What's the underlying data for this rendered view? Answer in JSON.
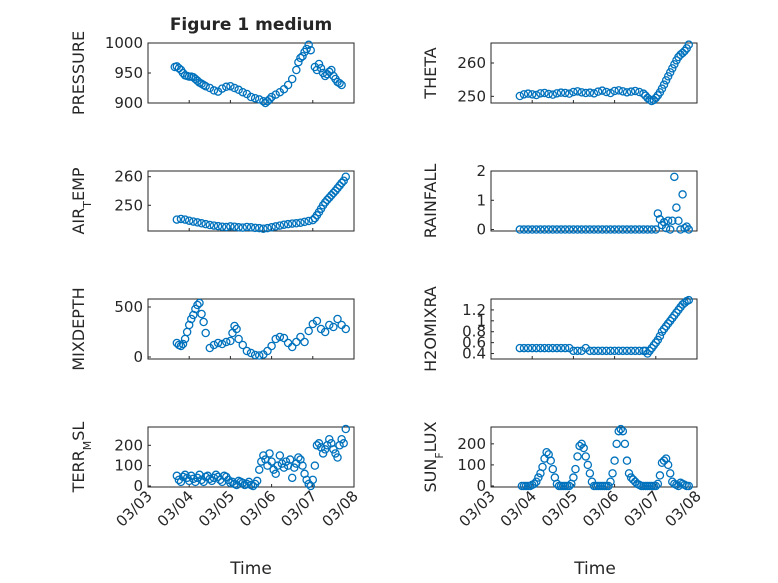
{
  "figure": {
    "title": "Figure 1 medium",
    "xlabel": "Time"
  },
  "chart_data": [
    {
      "name": "pressure",
      "type": "scatter",
      "ylabel": "PRESSURE",
      "ylim": [
        900,
        1000
      ],
      "yticks": [
        "900",
        "950",
        "1000"
      ],
      "xlim": [
        0,
        5
      ],
      "xticks": [
        "03/03",
        "03/04",
        "03/05",
        "03/06",
        "03/07",
        "03/08"
      ],
      "color": "#0072bd",
      "x": [
        0.65,
        0.7,
        0.75,
        0.8,
        0.85,
        0.9,
        0.95,
        1.0,
        1.05,
        1.1,
        1.15,
        1.2,
        1.25,
        1.3,
        1.35,
        1.4,
        1.5,
        1.6,
        1.7,
        1.8,
        1.9,
        2.0,
        2.1,
        2.2,
        2.3,
        2.4,
        2.5,
        2.6,
        2.7,
        2.8,
        2.85,
        2.9,
        2.95,
        3.0,
        3.1,
        3.2,
        3.3,
        3.4,
        3.5,
        3.6,
        3.65,
        3.7,
        3.75,
        3.8,
        3.85,
        3.9,
        3.95,
        4.05,
        4.1,
        4.15,
        4.2,
        4.25,
        4.3,
        4.35,
        4.4,
        4.45,
        4.5,
        4.55,
        4.6,
        4.65,
        4.7
      ],
      "y": [
        960,
        961,
        958,
        955,
        950,
        946,
        945,
        944,
        944,
        943,
        940,
        937,
        934,
        932,
        930,
        928,
        925,
        921,
        919,
        924,
        927,
        928,
        925,
        922,
        918,
        915,
        910,
        908,
        906,
        903,
        900,
        903,
        906,
        910,
        914,
        918,
        923,
        930,
        940,
        955,
        968,
        975,
        978,
        985,
        990,
        997,
        988,
        960,
        955,
        965,
        958,
        950,
        945,
        948,
        952,
        955,
        945,
        940,
        935,
        933,
        930
      ]
    },
    {
      "name": "theta",
      "type": "scatter",
      "ylabel": "THETA",
      "ylim": [
        248,
        266
      ],
      "yticks": [
        "250",
        "260"
      ],
      "xlim": [
        0,
        5
      ],
      "xticks": [
        "03/03",
        "03/04",
        "03/05",
        "03/06",
        "03/07",
        "03/08"
      ],
      "color": "#0072bd",
      "x": [
        0.7,
        0.8,
        0.9,
        1.0,
        1.1,
        1.2,
        1.3,
        1.4,
        1.5,
        1.6,
        1.7,
        1.8,
        1.9,
        2.0,
        2.1,
        2.2,
        2.3,
        2.4,
        2.5,
        2.6,
        2.7,
        2.8,
        2.9,
        3.0,
        3.1,
        3.2,
        3.3,
        3.4,
        3.5,
        3.6,
        3.7,
        3.75,
        3.8,
        3.85,
        3.9,
        3.95,
        4.0,
        4.05,
        4.1,
        4.15,
        4.2,
        4.25,
        4.3,
        4.35,
        4.4,
        4.45,
        4.5,
        4.55,
        4.6,
        4.65,
        4.7,
        4.75,
        4.8
      ],
      "y": [
        250.1,
        250.6,
        250.8,
        250.6,
        250.4,
        250.9,
        251.0,
        250.7,
        250.5,
        250.9,
        251.1,
        251.0,
        250.8,
        251.3,
        251.5,
        251.2,
        251.0,
        251.1,
        250.9,
        251.4,
        251.7,
        251.3,
        251.0,
        251.6,
        251.8,
        251.5,
        251.2,
        251.4,
        251.6,
        251.3,
        250.8,
        250.2,
        249.5,
        249.0,
        248.6,
        248.9,
        249.5,
        250.3,
        251.2,
        252.3,
        253.5,
        254.8,
        256.0,
        257.2,
        258.4,
        259.6,
        260.8,
        261.8,
        262.5,
        263.0,
        263.6,
        264.4,
        265.5
      ]
    },
    {
      "name": "air_temp",
      "type": "scatter",
      "ylabel": "AIR_TEMP",
      "ylim": [
        241,
        262
      ],
      "yticks": [
        "250",
        "260"
      ],
      "xlim": [
        0,
        5
      ],
      "xticks": [
        "03/03",
        "03/04",
        "03/05",
        "03/06",
        "03/07",
        "03/08"
      ],
      "color": "#0072bd",
      "x": [
        0.7,
        0.8,
        0.9,
        1.0,
        1.1,
        1.2,
        1.3,
        1.4,
        1.5,
        1.6,
        1.7,
        1.8,
        1.9,
        2.0,
        2.1,
        2.2,
        2.3,
        2.4,
        2.5,
        2.6,
        2.7,
        2.8,
        2.9,
        3.0,
        3.1,
        3.2,
        3.3,
        3.4,
        3.5,
        3.6,
        3.7,
        3.8,
        3.9,
        4.0,
        4.05,
        4.1,
        4.15,
        4.2,
        4.25,
        4.3,
        4.35,
        4.4,
        4.45,
        4.5,
        4.55,
        4.6,
        4.65,
        4.7,
        4.75,
        4.8
      ],
      "y": [
        245.0,
        245.2,
        245.0,
        244.6,
        244.3,
        244.0,
        243.7,
        243.4,
        243.1,
        242.9,
        242.7,
        242.5,
        242.4,
        242.6,
        242.5,
        242.3,
        242.2,
        242.4,
        242.3,
        242.1,
        242.0,
        241.8,
        242.0,
        242.3,
        242.6,
        242.9,
        243.2,
        243.4,
        243.6,
        243.7,
        243.9,
        244.2,
        244.5,
        244.8,
        245.5,
        246.5,
        247.6,
        248.8,
        250.0,
        251.0,
        251.9,
        252.7,
        253.5,
        254.3,
        255.1,
        256.0,
        256.9,
        257.8,
        258.6,
        260.0
      ]
    },
    {
      "name": "rainfall",
      "type": "scatter",
      "ylabel": "RAINFALL",
      "ylim": [
        -0.05,
        2
      ],
      "yticks": [
        "0",
        "1",
        "2"
      ],
      "xlim": [
        0,
        5
      ],
      "xticks": [
        "03/03",
        "03/04",
        "03/05",
        "03/06",
        "03/07",
        "03/08"
      ],
      "color": "#0072bd",
      "x": [
        0.7,
        0.8,
        0.9,
        1.0,
        1.1,
        1.2,
        1.3,
        1.4,
        1.5,
        1.6,
        1.7,
        1.8,
        1.9,
        2.0,
        2.1,
        2.2,
        2.3,
        2.4,
        2.5,
        2.6,
        2.7,
        2.8,
        2.9,
        3.0,
        3.1,
        3.2,
        3.3,
        3.4,
        3.5,
        3.6,
        3.7,
        3.8,
        3.9,
        4.0,
        4.05,
        4.1,
        4.15,
        4.2,
        4.25,
        4.3,
        4.35,
        4.4,
        4.45,
        4.5,
        4.55,
        4.6,
        4.65,
        4.7,
        4.75,
        4.8
      ],
      "y": [
        0,
        0,
        0,
        0,
        0,
        0,
        0,
        0,
        0,
        0,
        0,
        0,
        0,
        0,
        0,
        0,
        0,
        0,
        0,
        0,
        0,
        0,
        0,
        0,
        0,
        0,
        0,
        0,
        0,
        0,
        0,
        0,
        0,
        0,
        0.55,
        0.35,
        0.15,
        0.25,
        0.05,
        0.3,
        0.0,
        0.3,
        1.8,
        0.75,
        0.3,
        0.0,
        1.2,
        0.05,
        0.1,
        0.0
      ]
    },
    {
      "name": "mixdepth",
      "type": "scatter",
      "ylabel": "MIXDEPTH",
      "ylim": [
        -20,
        580
      ],
      "yticks": [
        "0",
        "500"
      ],
      "xlim": [
        0,
        5
      ],
      "xticks": [
        "03/03",
        "03/04",
        "03/05",
        "03/06",
        "03/07",
        "03/08"
      ],
      "color": "#0072bd",
      "x": [
        0.7,
        0.75,
        0.8,
        0.85,
        0.9,
        0.95,
        1.0,
        1.05,
        1.1,
        1.15,
        1.2,
        1.25,
        1.3,
        1.35,
        1.4,
        1.5,
        1.6,
        1.7,
        1.8,
        1.9,
        2.0,
        2.05,
        2.1,
        2.15,
        2.2,
        2.3,
        2.4,
        2.5,
        2.6,
        2.7,
        2.8,
        2.9,
        3.0,
        3.1,
        3.2,
        3.3,
        3.4,
        3.5,
        3.6,
        3.7,
        3.8,
        3.9,
        4.0,
        4.1,
        4.2,
        4.3,
        4.4,
        4.5,
        4.6,
        4.7,
        4.8
      ],
      "y": [
        140,
        120,
        110,
        130,
        180,
        250,
        320,
        380,
        420,
        480,
        520,
        540,
        430,
        350,
        240,
        90,
        120,
        140,
        130,
        150,
        160,
        240,
        310,
        280,
        180,
        120,
        60,
        40,
        20,
        15,
        25,
        60,
        110,
        180,
        200,
        190,
        140,
        100,
        150,
        200,
        150,
        260,
        330,
        360,
        280,
        250,
        320,
        300,
        380,
        320,
        280
      ]
    },
    {
      "name": "h2omixra",
      "type": "scatter",
      "ylabel": "H2OMIXRA",
      "ylim": [
        0.3,
        1.4
      ],
      "yticks": [
        "0.4",
        "0.6",
        "0.8",
        "1",
        "1.2"
      ],
      "xlim": [
        0,
        5
      ],
      "xticks": [
        "03/03",
        "03/04",
        "03/05",
        "03/06",
        "03/07",
        "03/08"
      ],
      "color": "#0072bd",
      "x": [
        0.7,
        0.8,
        0.9,
        1.0,
        1.1,
        1.2,
        1.3,
        1.4,
        1.5,
        1.6,
        1.7,
        1.8,
        1.9,
        2.0,
        2.1,
        2.2,
        2.3,
        2.4,
        2.5,
        2.6,
        2.7,
        2.8,
        2.9,
        3.0,
        3.1,
        3.2,
        3.3,
        3.4,
        3.5,
        3.6,
        3.7,
        3.75,
        3.8,
        3.85,
        3.9,
        3.95,
        4.0,
        4.05,
        4.1,
        4.15,
        4.2,
        4.25,
        4.3,
        4.35,
        4.4,
        4.45,
        4.5,
        4.55,
        4.6,
        4.65,
        4.7,
        4.75,
        4.8
      ],
      "y": [
        0.5,
        0.5,
        0.5,
        0.5,
        0.5,
        0.5,
        0.5,
        0.5,
        0.5,
        0.5,
        0.5,
        0.5,
        0.5,
        0.45,
        0.45,
        0.45,
        0.5,
        0.45,
        0.45,
        0.45,
        0.45,
        0.45,
        0.45,
        0.45,
        0.45,
        0.45,
        0.45,
        0.45,
        0.45,
        0.45,
        0.45,
        0.45,
        0.4,
        0.45,
        0.5,
        0.55,
        0.6,
        0.65,
        0.72,
        0.8,
        0.85,
        0.9,
        0.95,
        1.0,
        1.05,
        1.1,
        1.15,
        1.2,
        1.25,
        1.3,
        1.33,
        1.36,
        1.38
      ]
    },
    {
      "name": "terr_msl",
      "type": "scatter",
      "ylabel": "TERR_MSL",
      "ylim": [
        -5,
        290
      ],
      "yticks": [
        "0",
        "100",
        "200"
      ],
      "xlim": [
        0,
        5
      ],
      "xticks": [
        "03/03",
        "03/04",
        "03/05",
        "03/06",
        "03/07",
        "03/08"
      ],
      "color": "#0072bd",
      "x": [
        0.7,
        0.75,
        0.8,
        0.85,
        0.9,
        0.95,
        1.0,
        1.05,
        1.1,
        1.15,
        1.2,
        1.25,
        1.3,
        1.35,
        1.4,
        1.45,
        1.5,
        1.55,
        1.6,
        1.65,
        1.7,
        1.75,
        1.8,
        1.85,
        1.9,
        1.95,
        2.0,
        2.05,
        2.1,
        2.15,
        2.2,
        2.25,
        2.3,
        2.35,
        2.4,
        2.45,
        2.5,
        2.55,
        2.6,
        2.65,
        2.7,
        2.75,
        2.8,
        2.85,
        2.9,
        2.95,
        3.0,
        3.05,
        3.1,
        3.15,
        3.2,
        3.25,
        3.3,
        3.35,
        3.4,
        3.45,
        3.5,
        3.55,
        3.6,
        3.65,
        3.7,
        3.75,
        3.8,
        3.85,
        3.9,
        3.95,
        4.0,
        4.05,
        4.1,
        4.15,
        4.2,
        4.25,
        4.3,
        4.35,
        4.4,
        4.45,
        4.5,
        4.55,
        4.6,
        4.65,
        4.7,
        4.75,
        4.8
      ],
      "y": [
        50,
        30,
        20,
        45,
        55,
        40,
        25,
        50,
        35,
        20,
        40,
        55,
        30,
        20,
        45,
        50,
        35,
        25,
        40,
        55,
        45,
        30,
        20,
        50,
        45,
        30,
        15,
        20,
        10,
        5,
        25,
        20,
        15,
        5,
        10,
        20,
        5,
        0,
        10,
        25,
        80,
        120,
        150,
        130,
        100,
        160,
        120,
        80,
        60,
        100,
        150,
        110,
        90,
        120,
        100,
        130,
        40,
        90,
        110,
        140,
        130,
        100,
        60,
        30,
        10,
        0,
        30,
        100,
        200,
        210,
        190,
        160,
        180,
        200,
        230,
        210,
        180,
        160,
        140,
        200,
        230,
        210,
        280
      ]
    },
    {
      "name": "sun_flux",
      "type": "scatter",
      "ylabel": "SUN_FLUX",
      "ylim": [
        -5,
        280
      ],
      "yticks": [
        "0",
        "100",
        "200"
      ],
      "xlim": [
        0,
        5
      ],
      "xticks": [
        "03/03",
        "03/04",
        "03/05",
        "03/06",
        "03/07",
        "03/08"
      ],
      "color": "#0072bd",
      "x": [
        0.75,
        0.8,
        0.85,
        0.9,
        0.95,
        1.0,
        1.05,
        1.1,
        1.15,
        1.2,
        1.25,
        1.3,
        1.35,
        1.4,
        1.45,
        1.5,
        1.55,
        1.6,
        1.65,
        1.7,
        1.75,
        1.8,
        1.85,
        1.9,
        1.95,
        2.0,
        2.05,
        2.1,
        2.15,
        2.2,
        2.25,
        2.3,
        2.35,
        2.4,
        2.45,
        2.5,
        2.55,
        2.6,
        2.65,
        2.7,
        2.75,
        2.8,
        2.85,
        2.9,
        2.95,
        3.0,
        3.05,
        3.1,
        3.15,
        3.2,
        3.25,
        3.3,
        3.35,
        3.4,
        3.45,
        3.5,
        3.55,
        3.6,
        3.65,
        3.7,
        3.75,
        3.8,
        3.85,
        3.9,
        3.95,
        4.0,
        4.05,
        4.1,
        4.15,
        4.2,
        4.25,
        4.3,
        4.35,
        4.4,
        4.45,
        4.5,
        4.55,
        4.6,
        4.65,
        4.7,
        4.75,
        4.8
      ],
      "y": [
        0,
        0,
        0,
        0,
        0,
        5,
        10,
        20,
        40,
        60,
        90,
        130,
        160,
        150,
        120,
        80,
        40,
        10,
        0,
        0,
        0,
        0,
        0,
        0,
        10,
        40,
        80,
        140,
        190,
        200,
        180,
        140,
        100,
        60,
        20,
        0,
        0,
        0,
        0,
        0,
        0,
        0,
        0,
        20,
        60,
        120,
        200,
        260,
        270,
        260,
        200,
        120,
        60,
        40,
        30,
        20,
        10,
        5,
        0,
        0,
        0,
        0,
        0,
        0,
        0,
        0,
        10,
        50,
        110,
        120,
        130,
        100,
        60,
        20,
        10,
        5,
        0,
        15,
        10,
        5,
        0,
        0
      ]
    }
  ]
}
